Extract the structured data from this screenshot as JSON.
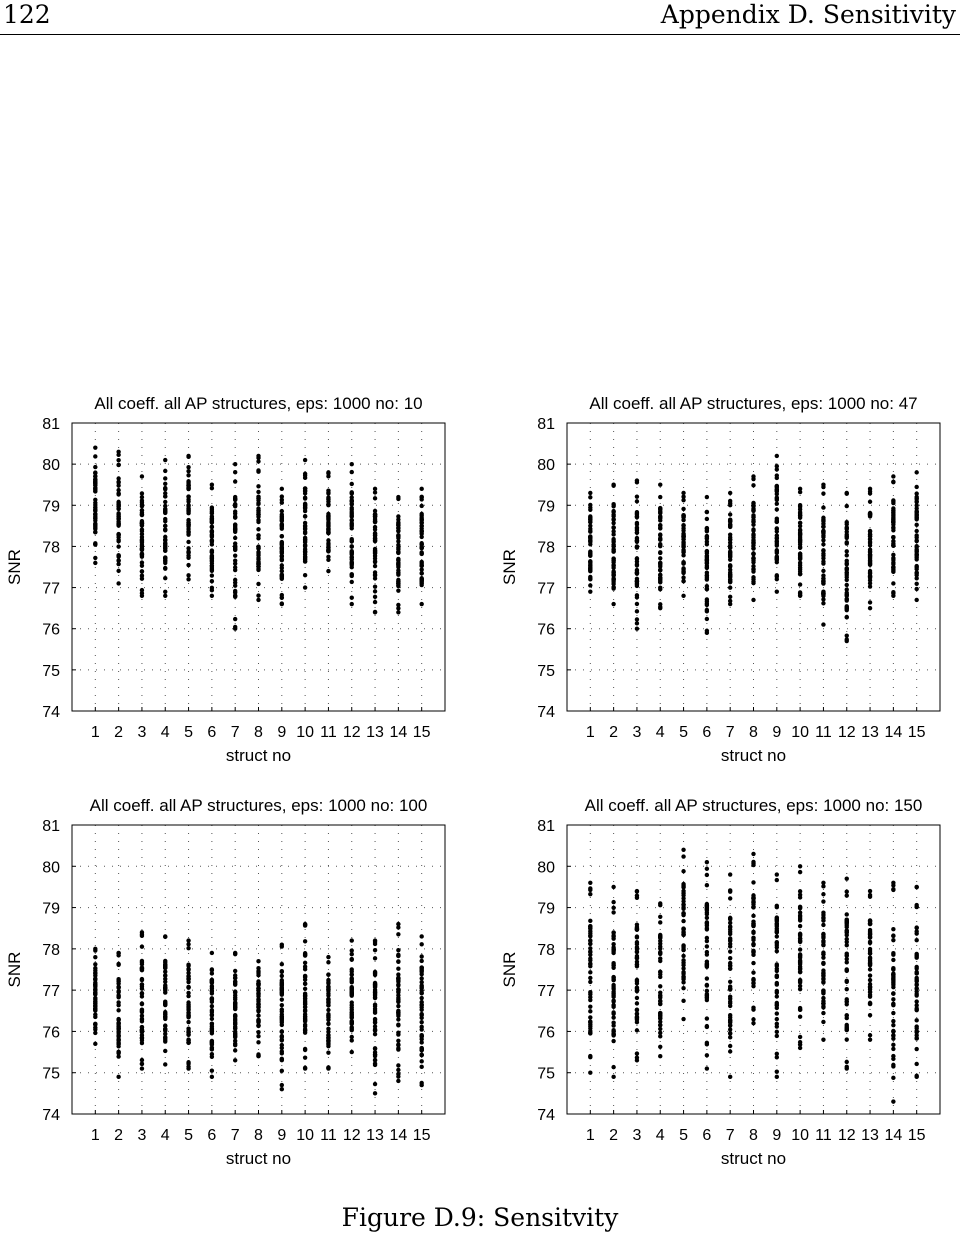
{
  "header": {
    "page_number": "122",
    "chapter_title": "Appendix D.  Sensitivity"
  },
  "caption": "Figure D.9: Sensitvity",
  "chart_data": [
    {
      "type": "scatter",
      "title": "All coeff. all AP structures, eps: 1000 no: 10",
      "xlabel": "struct no",
      "ylabel": "SNR",
      "categories": [
        "1",
        "2",
        "3",
        "4",
        "5",
        "6",
        "7",
        "8",
        "9",
        "10",
        "11",
        "12",
        "13",
        "14",
        "15"
      ],
      "ylim": [
        74,
        81
      ],
      "yticks": [
        "74",
        "75",
        "76",
        "77",
        "78",
        "79",
        "80",
        "81"
      ],
      "grid": true,
      "ranges": [
        [
          77.6,
          80.4
        ],
        [
          77.1,
          80.3
        ],
        [
          76.8,
          79.7
        ],
        [
          76.8,
          80.1
        ],
        [
          77.2,
          80.2
        ],
        [
          76.8,
          79.5
        ],
        [
          76.0,
          80.0
        ],
        [
          76.7,
          80.2
        ],
        [
          76.6,
          79.4
        ],
        [
          77.0,
          80.1
        ],
        [
          77.4,
          79.8
        ],
        [
          76.6,
          80.0
        ],
        [
          76.4,
          79.4
        ],
        [
          76.4,
          79.2
        ],
        [
          76.6,
          79.4
        ]
      ]
    },
    {
      "type": "scatter",
      "title": "All coeff. all AP structures, eps: 1000 no: 47",
      "xlabel": "struct no",
      "ylabel": "SNR",
      "categories": [
        "1",
        "2",
        "3",
        "4",
        "5",
        "6",
        "7",
        "8",
        "9",
        "10",
        "11",
        "12",
        "13",
        "14",
        "15"
      ],
      "ylim": [
        74,
        81
      ],
      "yticks": [
        "74",
        "75",
        "76",
        "77",
        "78",
        "79",
        "80",
        "81"
      ],
      "grid": true,
      "ranges": [
        [
          76.9,
          79.3
        ],
        [
          76.6,
          79.5
        ],
        [
          76.0,
          79.6
        ],
        [
          76.5,
          79.5
        ],
        [
          76.8,
          79.3
        ],
        [
          75.9,
          79.2
        ],
        [
          76.6,
          79.3
        ],
        [
          76.7,
          79.7
        ],
        [
          76.9,
          80.2
        ],
        [
          76.8,
          79.4
        ],
        [
          76.1,
          79.5
        ],
        [
          75.7,
          79.3
        ],
        [
          76.5,
          79.4
        ],
        [
          76.8,
          79.7
        ],
        [
          76.7,
          79.8
        ]
      ]
    },
    {
      "type": "scatter",
      "title": "All coeff. all AP structures, eps: 1000 no: 100",
      "xlabel": "struct no",
      "ylabel": "SNR",
      "categories": [
        "1",
        "2",
        "3",
        "4",
        "5",
        "6",
        "7",
        "8",
        "9",
        "10",
        "11",
        "12",
        "13",
        "14",
        "15"
      ],
      "ylim": [
        74,
        81
      ],
      "yticks": [
        "74",
        "75",
        "76",
        "77",
        "78",
        "79",
        "80",
        "81"
      ],
      "grid": true,
      "ranges": [
        [
          75.7,
          78.0
        ],
        [
          74.9,
          77.9
        ],
        [
          75.1,
          78.4
        ],
        [
          75.2,
          78.3
        ],
        [
          75.1,
          78.2
        ],
        [
          74.9,
          77.9
        ],
        [
          75.3,
          77.9
        ],
        [
          75.4,
          77.7
        ],
        [
          74.6,
          78.1
        ],
        [
          75.1,
          78.6
        ],
        [
          75.1,
          77.8
        ],
        [
          75.5,
          78.2
        ],
        [
          74.5,
          78.2
        ],
        [
          74.8,
          78.6
        ],
        [
          74.7,
          78.3
        ]
      ]
    },
    {
      "type": "scatter",
      "title": "All coeff. all AP structures, eps: 1000 no: 150",
      "xlabel": "struct no",
      "ylabel": "SNR",
      "categories": [
        "1",
        "2",
        "3",
        "4",
        "5",
        "6",
        "7",
        "8",
        "9",
        "10",
        "11",
        "12",
        "13",
        "14",
        "15"
      ],
      "ylim": [
        74,
        81
      ],
      "yticks": [
        "74",
        "75",
        "76",
        "77",
        "78",
        "79",
        "80",
        "81"
      ],
      "grid": true,
      "ranges": [
        [
          75.0,
          79.6
        ],
        [
          74.9,
          79.5
        ],
        [
          75.3,
          79.4
        ],
        [
          75.4,
          79.1
        ],
        [
          76.3,
          80.4
        ],
        [
          75.1,
          80.1
        ],
        [
          74.9,
          79.8
        ],
        [
          76.2,
          80.3
        ],
        [
          74.9,
          79.8
        ],
        [
          75.6,
          80.0
        ],
        [
          75.8,
          79.6
        ],
        [
          75.1,
          79.7
        ],
        [
          75.8,
          79.4
        ],
        [
          74.3,
          79.6
        ],
        [
          74.9,
          79.5
        ]
      ]
    }
  ]
}
